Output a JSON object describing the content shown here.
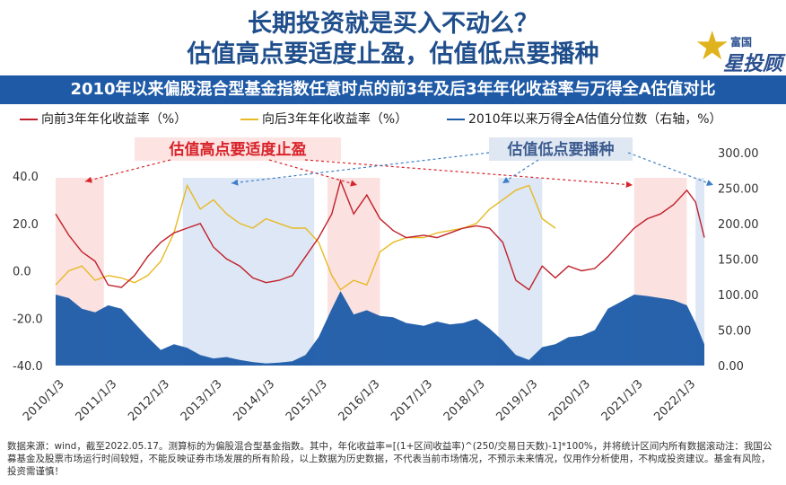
{
  "header": {
    "title_line1": "长期投资就是买入不动么？",
    "title_line2": "估值高点要适度止盈，估值低点要播种",
    "brand_small": "富国",
    "brand_big": "星投顾",
    "subtitle": "2010年以来偏股混合型基金指数任意时点的前3年及后3年年化收益率与万得全A估值对比"
  },
  "colors": {
    "trailing": "#c0202a",
    "forward": "#e8b923",
    "valuation": "#1b5ba8",
    "high_band": "#fbe1e0",
    "low_band": "#dde7f5",
    "high_text": "#d8232a",
    "low_text": "#3d5c8f"
  },
  "footnote": "数据来源：wind，截至2022.05.17。测算标的为偏股混合型基金指数。其中，年化收益率=[(1+区间收益率)^(250/交易日天数)-1]*100%，并将统计区间内所有数据滚动注：我国公募基金及股票市场运行时间较短，不能反映证券市场发展的所有阶段，以上数据为历史数据，不代表当前市场情况，不预示未来情况，仅用作分析使用，不构成投资建议。基金有风险，投资需谨慎！",
  "chart_data": {
    "type": "line",
    "series": [
      {
        "name": "向前3年年化收益率（%）",
        "axis": "left",
        "x": [
          "2010-01",
          "2010-04",
          "2010-07",
          "2010-10",
          "2011-01",
          "2011-04",
          "2011-07",
          "2011-10",
          "2012-01",
          "2012-04",
          "2012-07",
          "2012-10",
          "2013-01",
          "2013-04",
          "2013-07",
          "2013-10",
          "2014-01",
          "2014-04",
          "2014-07",
          "2014-10",
          "2015-01",
          "2015-04",
          "2015-06",
          "2015-09",
          "2015-12",
          "2016-03",
          "2016-06",
          "2016-09",
          "2017-01",
          "2017-04",
          "2017-07",
          "2017-10",
          "2018-01",
          "2018-04",
          "2018-07",
          "2018-10",
          "2019-01",
          "2019-04",
          "2019-07",
          "2019-10",
          "2020-01",
          "2020-04",
          "2020-07",
          "2020-10",
          "2021-01",
          "2021-04",
          "2021-07",
          "2021-10",
          "2022-01",
          "2022-03",
          "2022-05"
        ],
        "values": [
          24,
          15,
          8,
          4,
          -6,
          -7,
          -2,
          6,
          12,
          16,
          18,
          20,
          10,
          5,
          2,
          -3,
          -5,
          -4,
          -2,
          6,
          14,
          24,
          38,
          24,
          32,
          22,
          17,
          14,
          15,
          14,
          16,
          18,
          19,
          18,
          12,
          -4,
          -8,
          2,
          -3,
          2,
          0,
          1,
          6,
          12,
          18,
          22,
          24,
          28,
          34,
          29,
          14
        ]
      },
      {
        "name": "向后3年年化收益率（%）",
        "axis": "left",
        "x": [
          "2010-01",
          "2010-04",
          "2010-07",
          "2010-10",
          "2011-01",
          "2011-04",
          "2011-07",
          "2011-10",
          "2012-01",
          "2012-04",
          "2012-07",
          "2012-10",
          "2013-01",
          "2013-04",
          "2013-07",
          "2013-10",
          "2014-01",
          "2014-04",
          "2014-07",
          "2014-10",
          "2015-01",
          "2015-04",
          "2015-06",
          "2015-09",
          "2015-12",
          "2016-03",
          "2016-06",
          "2016-09",
          "2017-01",
          "2017-04",
          "2017-07",
          "2017-10",
          "2018-01",
          "2018-04",
          "2018-07",
          "2018-10",
          "2019-01",
          "2019-04",
          "2019-07"
        ],
        "values": [
          -6,
          0,
          2,
          -4,
          -2,
          -3,
          -5,
          -2,
          4,
          16,
          36,
          26,
          30,
          24,
          20,
          18,
          22,
          20,
          18,
          18,
          12,
          -2,
          -8,
          -4,
          -6,
          8,
          12,
          14,
          14,
          16,
          17,
          18,
          20,
          26,
          30,
          34,
          36,
          22,
          18
        ]
      },
      {
        "name": "2010年以来万得全A估值分位数（右轴，%）",
        "axis": "right",
        "type": "area",
        "x": [
          "2010-01",
          "2010-04",
          "2010-07",
          "2010-10",
          "2011-01",
          "2011-04",
          "2011-07",
          "2011-10",
          "2012-01",
          "2012-04",
          "2012-07",
          "2012-10",
          "2013-01",
          "2013-04",
          "2013-07",
          "2013-10",
          "2014-01",
          "2014-04",
          "2014-07",
          "2014-10",
          "2015-01",
          "2015-04",
          "2015-06",
          "2015-09",
          "2015-12",
          "2016-03",
          "2016-06",
          "2016-09",
          "2017-01",
          "2017-04",
          "2017-07",
          "2017-10",
          "2018-01",
          "2018-04",
          "2018-07",
          "2018-10",
          "2019-01",
          "2019-04",
          "2019-07",
          "2019-10",
          "2020-01",
          "2020-04",
          "2020-07",
          "2020-10",
          "2021-01",
          "2021-04",
          "2021-07",
          "2021-10",
          "2022-01",
          "2022-03",
          "2022-05"
        ],
        "values": [
          100,
          95,
          80,
          75,
          85,
          80,
          60,
          40,
          22,
          30,
          25,
          15,
          10,
          12,
          8,
          5,
          3,
          4,
          6,
          15,
          40,
          80,
          105,
          72,
          78,
          70,
          68,
          60,
          56,
          62,
          58,
          60,
          66,
          52,
          35,
          15,
          8,
          26,
          30,
          40,
          42,
          50,
          80,
          90,
          100,
          98,
          95,
          92,
          85,
          60,
          30
        ]
      }
    ],
    "left_axis": {
      "ticks": [
        "40.0",
        "20.0",
        "0.0",
        "-20.0",
        "-40.0"
      ],
      "min": -40,
      "max": 40
    },
    "right_axis": {
      "ticks": [
        "300.00",
        "250.00",
        "200.00",
        "150.00",
        "100.00",
        "50.00",
        "0.00"
      ],
      "min": 0,
      "max": 300
    },
    "x_axis": {
      "ticks": [
        "2010/1/3",
        "2011/1/3",
        "2012/1/3",
        "2013/1/3",
        "2014/1/3",
        "2015/1/3",
        "2016/1/3",
        "2017/1/3",
        "2018/1/3",
        "2019/1/3",
        "2020/1/3",
        "2021/1/3",
        "2022/1/3"
      ],
      "start": "2010-01",
      "end": "2022-05"
    },
    "high_bands": [
      [
        "2010-01",
        "2010-12"
      ],
      [
        "2015-03",
        "2016-03"
      ],
      [
        "2021-01",
        "2022-01"
      ]
    ],
    "low_bands": [
      [
        "2012-06",
        "2014-12"
      ],
      [
        "2018-06",
        "2019-04"
      ],
      [
        "2022-03",
        "2022-05"
      ]
    ],
    "annotations": {
      "high_label": "估值高点要适度止盈",
      "low_label": "估值低点要播种"
    },
    "legend_position": "top"
  }
}
